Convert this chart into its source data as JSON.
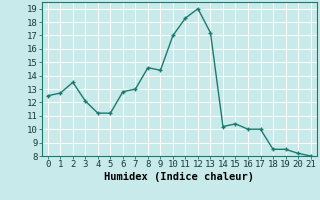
{
  "x": [
    0,
    1,
    2,
    3,
    4,
    5,
    6,
    7,
    8,
    9,
    10,
    11,
    12,
    13,
    14,
    15,
    16,
    17,
    18,
    19,
    20,
    21
  ],
  "y": [
    12.5,
    12.7,
    13.5,
    12.1,
    11.2,
    11.2,
    12.8,
    13.0,
    14.6,
    14.4,
    17.0,
    18.3,
    19.0,
    17.2,
    10.2,
    10.4,
    10.0,
    10.0,
    8.5,
    8.5,
    8.2,
    8.0
  ],
  "line_color": "#1a7a6e",
  "marker": "+",
  "marker_size": 3,
  "linewidth": 1.0,
  "bg_color": "#c8eaea",
  "grid_color": "#ffffff",
  "xlabel": "Humidex (Indice chaleur)",
  "xlim": [
    -0.5,
    21.5
  ],
  "ylim": [
    8,
    19.5
  ],
  "xticks": [
    0,
    1,
    2,
    3,
    4,
    5,
    6,
    7,
    8,
    9,
    10,
    11,
    12,
    13,
    14,
    15,
    16,
    17,
    18,
    19,
    20,
    21
  ],
  "yticks": [
    8,
    9,
    10,
    11,
    12,
    13,
    14,
    15,
    16,
    17,
    18,
    19
  ],
  "tick_fontsize": 6.5,
  "xlabel_fontsize": 7.5
}
